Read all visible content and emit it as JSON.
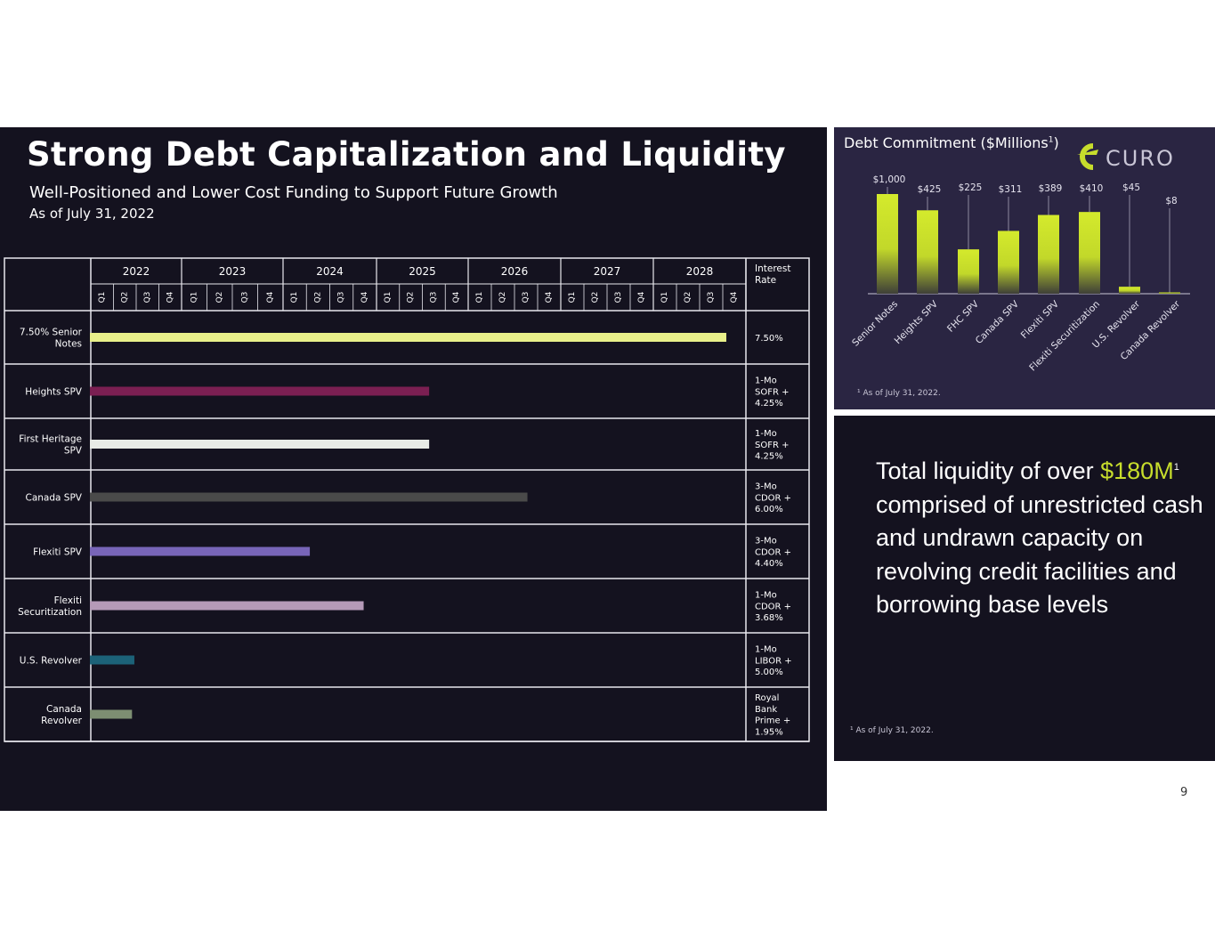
{
  "title": "Strong Debt Capitalization and Liquidity",
  "subtitle": "Well-Positioned and Lower Cost Funding to Support Future Growth",
  "as_of": "As of July 31, 2022",
  "page_number": "9",
  "logo_text": "CURO",
  "colors": {
    "accent": "#c7dd2c",
    "dark_bg": "#14121f",
    "panel_bg": "#2a2542"
  },
  "maturity_table": {
    "header_rate": "Interest Rate",
    "years": [
      "2022",
      "2023",
      "2024",
      "2025",
      "2026",
      "2027",
      "2028"
    ],
    "quarters": [
      "Q1",
      "Q2",
      "Q3",
      "Q4"
    ],
    "rows": [
      {
        "name": "7.50% Senior Notes",
        "rate": "7.50%",
        "color": "#e9f08a",
        "end_quarter": 27.2
      },
      {
        "name": "Heights SPV",
        "rate": "1-Mo SOFR + 4.25%",
        "color": "#7b1f52",
        "end_quarter": 14.5
      },
      {
        "name": "First Heritage SPV",
        "rate": "1-Mo SOFR + 4.25%",
        "color": "#e8ebe6",
        "end_quarter": 14.5
      },
      {
        "name": "Canada SPV",
        "rate": "3-Mo CDOR + 6.00%",
        "color": "#4a4a4a",
        "end_quarter": 18.7
      },
      {
        "name": "Flexiti SPV",
        "rate": "3-Mo CDOR + 4.40%",
        "color": "#7865b8",
        "end_quarter": 9.4
      },
      {
        "name": "Flexiti Securitization",
        "rate": "1-Mo CDOR + 3.68%",
        "color": "#b59ab8",
        "end_quarter": 11.7
      },
      {
        "name": "U.S. Revolver",
        "rate": "1-Mo LIBOR + 5.00%",
        "color": "#1c6278",
        "end_quarter": 1.9
      },
      {
        "name": "Canada Revolver",
        "rate": "Royal Bank Prime + 1.95%",
        "color": "#7d8e72",
        "end_quarter": 1.8
      }
    ]
  },
  "chart_data": {
    "type": "bar",
    "title": "Debt Commitment ($Millions",
    "title_footnote_mark": "1",
    "categories": [
      "Senior Notes",
      "Heights SPV",
      "FHC SPV",
      "Canada SPV",
      "Flexiti SPV",
      "Flexiti Securitization",
      "U.S. Revolver",
      "Canada Revolver"
    ],
    "values": [
      1000,
      425,
      225,
      311,
      389,
      410,
      45,
      8
    ],
    "bar_heights_scale_values": [
      1000,
      837,
      445,
      630,
      790,
      820,
      70,
      12
    ],
    "data_labels": [
      "$1,000",
      "$425",
      "$225",
      "$311",
      "$389",
      "$410",
      "$45",
      "$8"
    ],
    "xlabel": "",
    "ylabel": "",
    "grid": false,
    "legend": "none",
    "footnote": "¹ As of July 31, 2022."
  },
  "liquidity": {
    "text_before": "Total liquidity of over ",
    "highlight": "$180M",
    "footnote_mark": "1",
    "text_after": " comprised of unrestricted cash and undrawn capacity on revolving credit facilities and borrowing base levels",
    "footnote": "¹ As of July 31, 2022."
  }
}
